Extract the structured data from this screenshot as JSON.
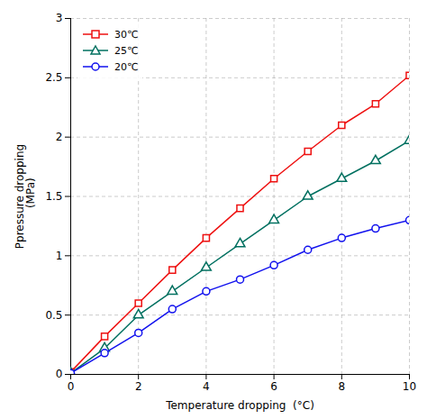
{
  "chart_data": {
    "type": "line",
    "xlabel": "Temperature dropping  (°C)",
    "ylabel": "Ppressure dropping\n  (MPa)",
    "x": [
      0,
      1,
      2,
      3,
      4,
      5,
      6,
      7,
      8,
      9,
      10
    ],
    "series": [
      {
        "name": "30℃",
        "color": "#ee1111",
        "marker": "square",
        "values": [
          0.02,
          0.32,
          0.6,
          0.88,
          1.15,
          1.4,
          1.65,
          1.88,
          2.1,
          2.28,
          2.52
        ]
      },
      {
        "name": "25℃",
        "color": "#007060",
        "marker": "triangle",
        "values": [
          0.01,
          0.22,
          0.5,
          0.7,
          0.9,
          1.1,
          1.3,
          1.5,
          1.65,
          1.8,
          1.97
        ]
      },
      {
        "name": "20℃",
        "color": "#1111ee",
        "marker": "circle",
        "values": [
          0.01,
          0.18,
          0.35,
          0.55,
          0.7,
          0.8,
          0.92,
          1.05,
          1.15,
          1.23,
          1.3
        ]
      }
    ],
    "xlim": [
      0,
      10
    ],
    "ylim": [
      0,
      3
    ],
    "xticks": [
      0,
      2,
      4,
      6,
      8,
      10
    ],
    "yticks": [
      0,
      0.5,
      1,
      1.5,
      2,
      2.5,
      3
    ],
    "grid": true,
    "legend": "upper left"
  }
}
